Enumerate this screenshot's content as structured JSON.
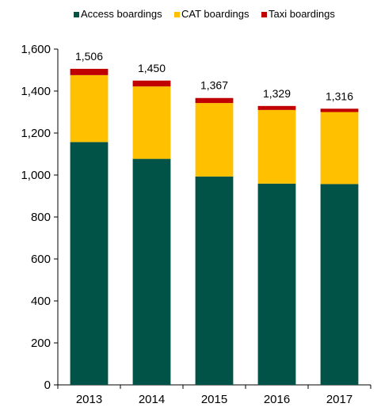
{
  "chart_data": {
    "type": "bar",
    "stacked": true,
    "categories": [
      "2013",
      "2014",
      "2015",
      "2016",
      "2017"
    ],
    "series": [
      {
        "name": "Access boardings",
        "color": "#005346",
        "values": [
          1157,
          1077,
          993,
          959,
          957
        ]
      },
      {
        "name": "CAT boardings",
        "color": "#FFC000",
        "values": [
          319,
          345,
          350,
          351,
          343
        ]
      },
      {
        "name": "Taxi boardings",
        "color": "#C00000",
        "values": [
          30,
          28,
          24,
          19,
          16
        ]
      }
    ],
    "totals": [
      "1,506",
      "1,450",
      "1,367",
      "1,329",
      "1,316"
    ],
    "ylim": [
      0,
      1600
    ],
    "yticks": [
      0,
      200,
      400,
      600,
      800,
      1000,
      1200,
      1400,
      1600
    ],
    "ytick_labels": [
      "0",
      "200",
      "400",
      "600",
      "800",
      "1,000",
      "1,200",
      "1,400",
      "1,600"
    ],
    "legend_position": "top",
    "grid": false
  }
}
